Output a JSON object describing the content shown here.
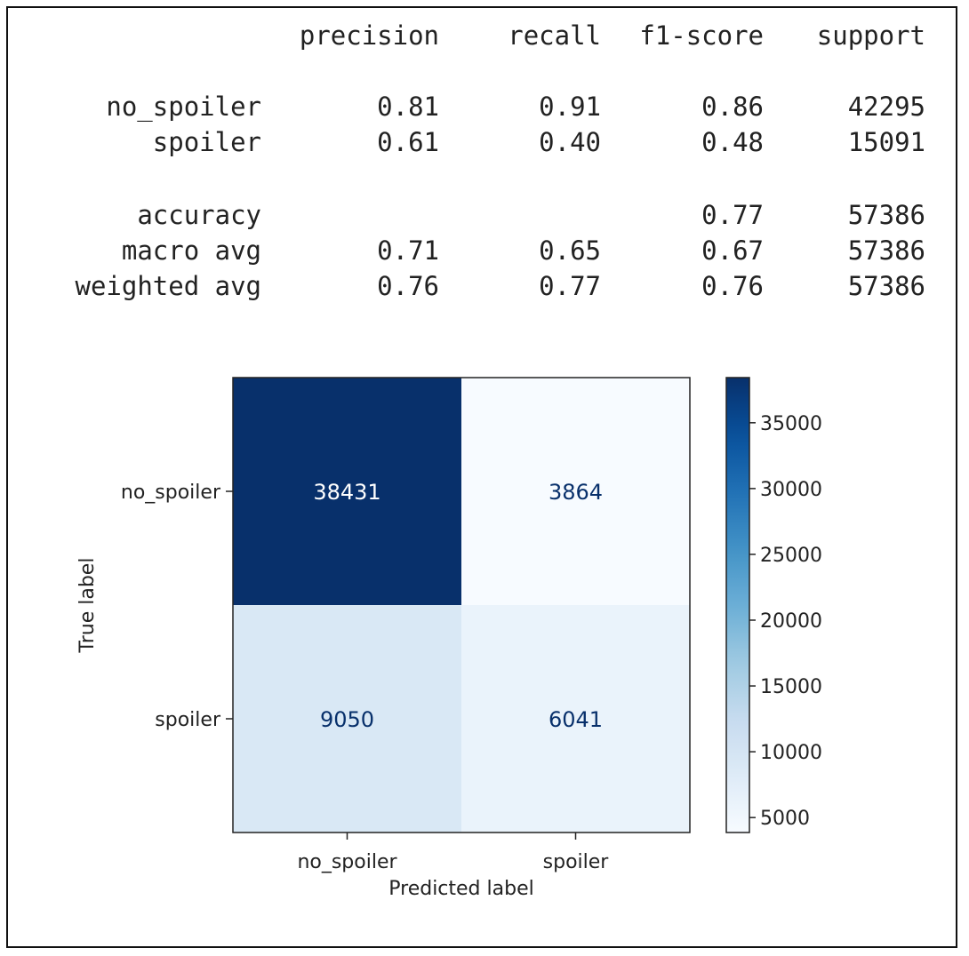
{
  "classification_report": {
    "headers": [
      "precision",
      "recall",
      "f1-score",
      "support"
    ],
    "rows": [
      {
        "label": "no_spoiler",
        "values": [
          "0.81",
          "0.91",
          "0.86",
          "42295"
        ]
      },
      {
        "label": "spoiler",
        "values": [
          "0.61",
          "0.40",
          "0.48",
          "15091"
        ]
      },
      {
        "label": "accuracy",
        "values": [
          "",
          "",
          "0.77",
          "57386"
        ]
      },
      {
        "label": "macro avg",
        "values": [
          "0.71",
          "0.65",
          "0.67",
          "57386"
        ]
      },
      {
        "label": "weighted avg",
        "values": [
          "0.76",
          "0.77",
          "0.76",
          "57386"
        ]
      }
    ]
  },
  "chart_data": {
    "type": "heatmap",
    "title": "",
    "xlabel": "Predicted label",
    "ylabel": "True label",
    "x_categories": [
      "no_spoiler",
      "spoiler"
    ],
    "y_categories": [
      "no_spoiler",
      "spoiler"
    ],
    "values": [
      [
        38431,
        3864
      ],
      [
        9050,
        6041
      ]
    ],
    "colormap": "Blues",
    "color_range": [
      3864,
      38431
    ],
    "colorbar_ticks": [
      5000,
      10000,
      15000,
      20000,
      25000,
      30000,
      35000
    ],
    "grid": false,
    "colors": {
      "low": "#f7fbff",
      "high": "#08306b",
      "text_dark": "#ffffff",
      "text_light": "#08306b"
    }
  }
}
